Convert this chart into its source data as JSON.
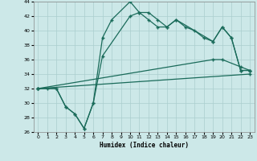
{
  "xlabel": "Humidex (Indice chaleur)",
  "xlim": [
    -0.5,
    23.5
  ],
  "ylim": [
    26,
    44
  ],
  "xticks": [
    0,
    1,
    2,
    3,
    4,
    5,
    6,
    7,
    8,
    9,
    10,
    11,
    12,
    13,
    14,
    15,
    16,
    17,
    18,
    19,
    20,
    21,
    22,
    23
  ],
  "yticks": [
    26,
    28,
    30,
    32,
    34,
    36,
    38,
    40,
    42,
    44
  ],
  "bg_color": "#cce8e8",
  "line_color": "#1a6b5a",
  "grid_color": "#aacece",
  "line1_x": [
    0,
    1,
    2,
    3,
    4,
    5,
    6,
    7,
    8,
    10,
    11,
    12,
    13,
    14,
    15,
    16,
    17,
    18,
    19,
    20,
    21,
    22,
    23
  ],
  "line1_y": [
    32,
    32,
    32,
    29.5,
    28.5,
    26.5,
    30,
    39,
    41.5,
    44,
    42.5,
    42.5,
    41.5,
    40.5,
    41.5,
    40.5,
    40,
    39,
    38.5,
    40.5,
    39,
    34.5,
    34.5
  ],
  "line2_x": [
    0,
    2,
    3,
    4,
    5,
    6,
    7,
    10,
    11,
    12,
    13,
    14,
    15,
    19,
    20,
    21,
    22,
    23
  ],
  "line2_y": [
    32,
    32,
    29.5,
    28.5,
    26.5,
    30,
    36.5,
    42,
    42.5,
    41.5,
    40.5,
    40.5,
    41.5,
    38.5,
    40.5,
    39,
    34.5,
    34.5
  ],
  "line3_x": [
    0,
    19,
    20,
    22,
    23
  ],
  "line3_y": [
    32,
    36,
    36,
    35,
    34.5
  ],
  "line4_x": [
    0,
    23
  ],
  "line4_y": [
    32,
    34
  ]
}
